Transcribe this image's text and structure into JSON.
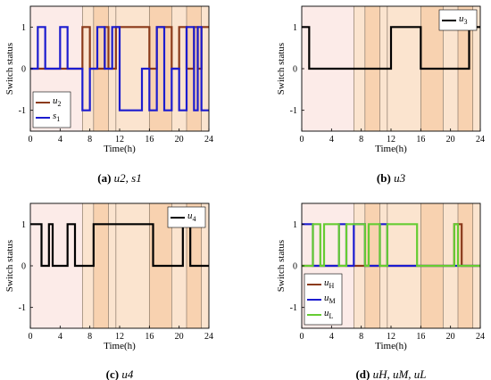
{
  "bands": [
    {
      "from": 0,
      "to": 7,
      "color": "#fcebe8"
    },
    {
      "from": 7,
      "to": 8.5,
      "color": "#fbe4cf"
    },
    {
      "from": 8.5,
      "to": 10.5,
      "color": "#f8d2b0"
    },
    {
      "from": 10.5,
      "to": 11.5,
      "color": "#fbe4cf"
    },
    {
      "from": 11.5,
      "to": 16,
      "color": "#fbe4cf"
    },
    {
      "from": 16,
      "to": 19,
      "color": "#f8d2b0"
    },
    {
      "from": 19,
      "to": 21,
      "color": "#fbe4cf"
    },
    {
      "from": 21,
      "to": 23,
      "color": "#f8d2b0"
    },
    {
      "from": 23,
      "to": 24,
      "color": "#fbe4cf"
    }
  ],
  "band_edges": [
    7,
    8.5,
    10.5,
    11.5,
    16,
    19,
    21,
    23
  ],
  "chart_data": [
    {
      "type": "line",
      "caption_letter": "(a)",
      "caption_rest": " u2, s1",
      "xlabel": "Time(h)",
      "ylabel": "Switch status",
      "xlim": [
        0,
        24
      ],
      "ylim": [
        -1.5,
        1.5
      ],
      "xticks": [
        0,
        4,
        8,
        12,
        16,
        20,
        24
      ],
      "yticks": [
        -1,
        0,
        1
      ],
      "legend_position": "bottom-left",
      "series": [
        {
          "name": "u2",
          "color": "#8b3a1a",
          "x": [
            0,
            7,
            7,
            8,
            8,
            10,
            10,
            10.5,
            10.5,
            11.5,
            11.5,
            16,
            16,
            17,
            17,
            19,
            19,
            20,
            20,
            21,
            21,
            22,
            22,
            22.5,
            22.5,
            23,
            23,
            24
          ],
          "y": [
            0,
            0,
            1,
            1,
            0,
            0,
            1,
            1,
            0,
            0,
            1,
            1,
            0,
            0,
            1,
            1,
            0,
            0,
            1,
            1,
            0,
            0,
            1,
            1,
            0,
            0,
            1,
            1
          ]
        },
        {
          "name": "s1",
          "color": "#1c1ccf",
          "x": [
            0,
            1,
            1,
            2,
            2,
            4,
            4,
            5,
            5,
            7,
            7,
            8,
            8,
            9,
            9,
            10,
            10,
            11,
            11,
            12,
            12,
            15,
            15,
            16,
            16,
            17,
            17,
            18,
            18,
            19,
            19,
            20,
            20,
            21,
            21,
            22,
            22,
            22.5,
            22.5,
            23,
            23,
            24
          ],
          "y": [
            0,
            0,
            1,
            1,
            0,
            0,
            1,
            1,
            0,
            0,
            -1,
            -1,
            0,
            0,
            1,
            1,
            0,
            0,
            1,
            1,
            -1,
            -1,
            0,
            0,
            -1,
            -1,
            1,
            1,
            -1,
            -1,
            0,
            0,
            -1,
            -1,
            1,
            1,
            -1,
            -1,
            1,
            1,
            -1,
            -1
          ]
        }
      ]
    },
    {
      "type": "line",
      "caption_letter": "(b)",
      "caption_rest": " u3",
      "xlabel": "Time(h)",
      "ylabel": "Switch status",
      "xlim": [
        0,
        24
      ],
      "ylim": [
        -1.5,
        1.5
      ],
      "xticks": [
        0,
        4,
        8,
        12,
        16,
        20,
        24
      ],
      "yticks": [
        -1,
        0,
        1
      ],
      "legend_position": "top-right",
      "series": [
        {
          "name": "u3",
          "color": "#000000",
          "x": [
            0,
            1,
            1,
            12,
            12,
            16,
            16,
            22.5,
            22.5,
            24
          ],
          "y": [
            1,
            1,
            0,
            0,
            1,
            1,
            0,
            0,
            1,
            1
          ]
        }
      ]
    },
    {
      "type": "line",
      "caption_letter": "(c)",
      "caption_rest": " u4",
      "xlabel": "Time(h)",
      "ylabel": "Switch status",
      "xlim": [
        0,
        24
      ],
      "ylim": [
        -1.5,
        1.5
      ],
      "xticks": [
        0,
        4,
        8,
        12,
        16,
        20,
        24
      ],
      "yticks": [
        -1,
        0,
        1
      ],
      "legend_position": "top-right",
      "series": [
        {
          "name": "u4",
          "color": "#000000",
          "x": [
            0,
            1.5,
            1.5,
            2.5,
            2.5,
            3,
            3,
            5,
            5,
            6,
            6,
            8.5,
            8.5,
            9,
            9,
            16.5,
            16.5,
            20.5,
            20.5,
            21.5,
            21.5,
            24
          ],
          "y": [
            1,
            1,
            0,
            0,
            1,
            1,
            0,
            0,
            1,
            1,
            0,
            0,
            1,
            1,
            1,
            1,
            0,
            0,
            1,
            1,
            0,
            0
          ]
        }
      ]
    },
    {
      "type": "line",
      "caption_letter": "(d)",
      "caption_rest": " uH, uM, uL",
      "xlabel": "Time(h)",
      "ylabel": "Switch status",
      "xlim": [
        0,
        24
      ],
      "ylim": [
        -1.5,
        1.5
      ],
      "xticks": [
        0,
        4,
        8,
        12,
        16,
        20,
        24
      ],
      "yticks": [
        -1,
        0,
        1
      ],
      "legend_position": "bottom-left",
      "series": [
        {
          "name": "uH",
          "color": "#8b3a1a",
          "x": [
            0,
            20.5,
            20.5,
            21.5,
            21.5,
            24
          ],
          "y": [
            0,
            0,
            1,
            1,
            0,
            0
          ]
        },
        {
          "name": "uM",
          "color": "#1c1ccf",
          "x": [
            0,
            1.5,
            1.5,
            5,
            5,
            6,
            6,
            7,
            7,
            8.5,
            8.5,
            10.5,
            10.5,
            11.5,
            11.5,
            16,
            16,
            24
          ],
          "y": [
            1,
            1,
            0,
            0,
            1,
            1,
            0,
            0,
            1,
            1,
            0,
            0,
            1,
            1,
            0,
            0,
            0,
            0
          ]
        },
        {
          "name": "uL",
          "color": "#66cc33",
          "x": [
            0,
            1.5,
            1.5,
            2.5,
            2.5,
            3,
            3,
            5,
            5,
            6,
            6,
            8.5,
            8.5,
            9,
            9,
            10.5,
            10.5,
            11.5,
            11.5,
            15.5,
            15.5,
            16.5,
            16.5,
            20.5,
            20.5,
            21,
            21,
            24
          ],
          "y": [
            0,
            0,
            1,
            1,
            0,
            0,
            1,
            1,
            0,
            0,
            1,
            1,
            0,
            0,
            1,
            1,
            0,
            0,
            1,
            1,
            0,
            0,
            0,
            0,
            1,
            1,
            0,
            0
          ]
        }
      ]
    }
  ]
}
